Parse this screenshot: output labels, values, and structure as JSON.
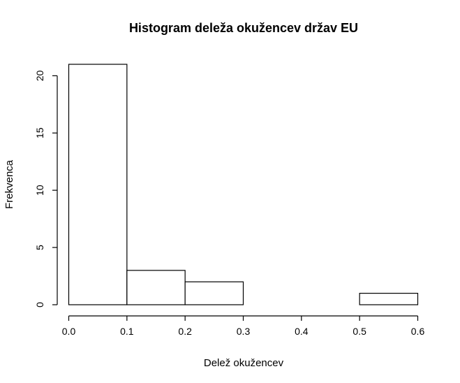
{
  "chart_data": {
    "type": "bar",
    "title": "Histogram deleža okužencev držav EU",
    "xlabel": "Delež okužencev",
    "ylabel": "Frekvenca",
    "bins": [
      {
        "from": 0.0,
        "to": 0.1,
        "count": 21
      },
      {
        "from": 0.1,
        "to": 0.2,
        "count": 3
      },
      {
        "from": 0.2,
        "to": 0.3,
        "count": 2
      },
      {
        "from": 0.3,
        "to": 0.4,
        "count": 0
      },
      {
        "from": 0.4,
        "to": 0.5,
        "count": 0
      },
      {
        "from": 0.5,
        "to": 0.6,
        "count": 1
      }
    ],
    "xlim": [
      0.0,
      0.6
    ],
    "ylim": [
      0,
      21
    ],
    "x_ticks": [
      "0.0",
      "0.1",
      "0.2",
      "0.3",
      "0.4",
      "0.5",
      "0.6"
    ],
    "y_ticks": [
      "0",
      "5",
      "10",
      "15",
      "20"
    ],
    "grid": false
  }
}
